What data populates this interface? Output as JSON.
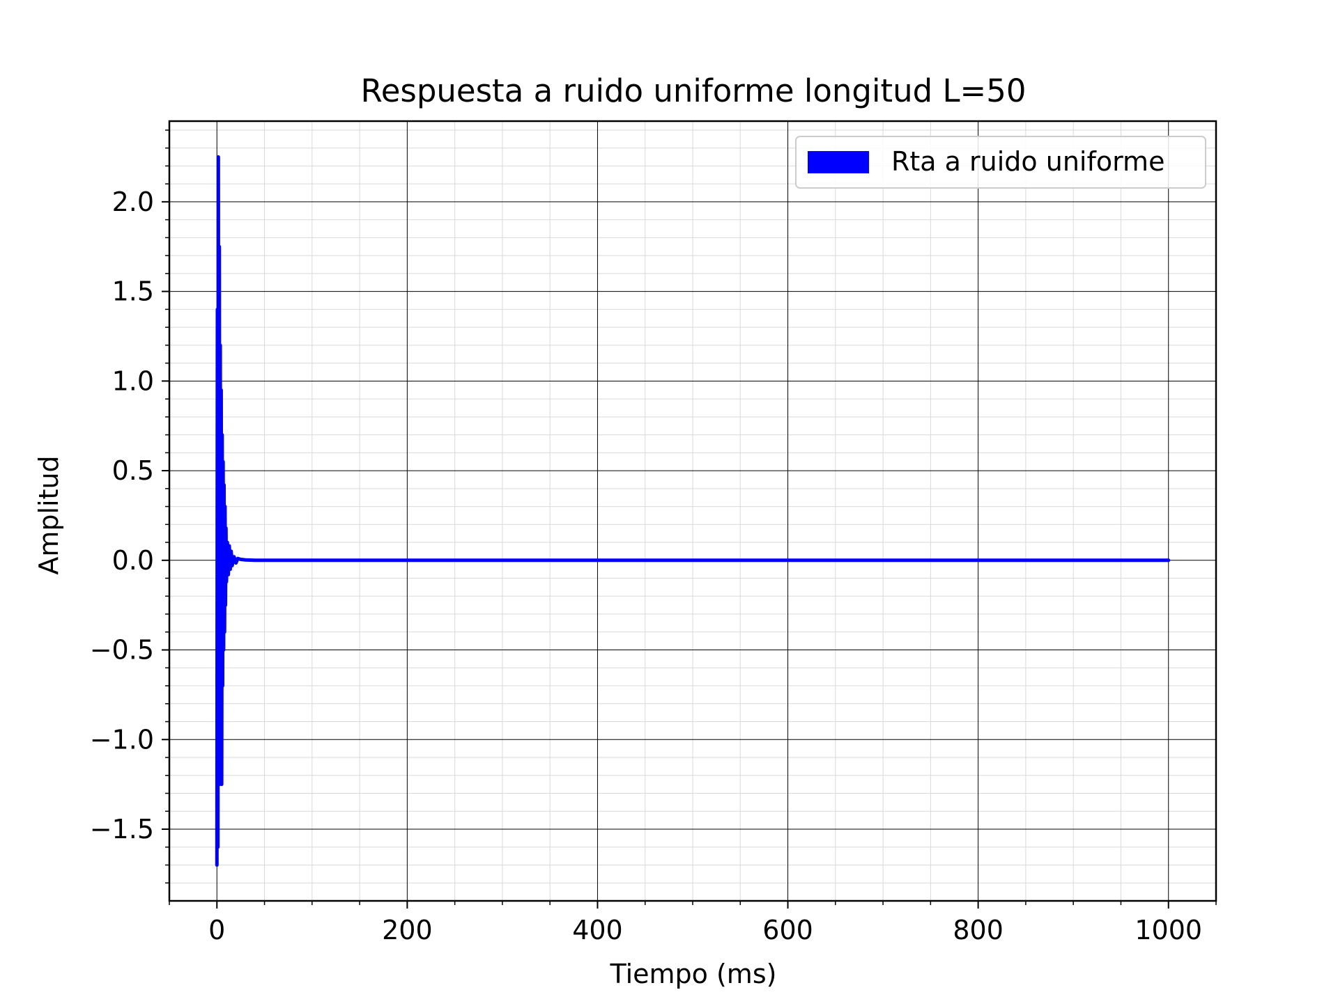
{
  "chart_data": {
    "type": "line",
    "title": "Respuesta a ruido uniforme longitud L=50",
    "xlabel": "Tiempo (ms)",
    "ylabel": "Amplitud",
    "xlim": [
      -50,
      1050
    ],
    "ylim": [
      -1.9,
      2.45
    ],
    "xticks": [
      0,
      200,
      400,
      600,
      800,
      1000
    ],
    "xtick_labels": [
      "0",
      "200",
      "400",
      "600",
      "800",
      "1000"
    ],
    "yticks": [
      -1.5,
      -1.0,
      -0.5,
      0.0,
      0.5,
      1.0,
      1.5,
      2.0
    ],
    "ytick_labels": [
      "−1.5",
      "−1.0",
      "−0.5",
      "0.0",
      "0.5",
      "1.0",
      "1.5",
      "2.0"
    ],
    "grid": "major and minor",
    "legend_position": "top-right",
    "series": [
      {
        "name": "Rta a ruido uniforme",
        "color": "#0000ff",
        "x": [
          0,
          0.5,
          1,
          1.5,
          2,
          2.5,
          3,
          3.5,
          4,
          4.5,
          5,
          5.5,
          6,
          6.5,
          7,
          7.5,
          8,
          8.5,
          9,
          9.5,
          10,
          11,
          12,
          13,
          14,
          15,
          16,
          18,
          20,
          22,
          25,
          30,
          40,
          60,
          100,
          1000
        ],
        "y": [
          -1.7,
          1.4,
          -1.6,
          2.25,
          -1.2,
          1.75,
          -1.25,
          1.2,
          -1.1,
          0.95,
          -1.25,
          0.7,
          -0.7,
          0.55,
          -0.5,
          0.42,
          -0.4,
          0.3,
          -0.25,
          0.18,
          -0.12,
          0.1,
          -0.08,
          0.08,
          -0.05,
          0.05,
          -0.03,
          0.02,
          -0.015,
          0.01,
          0.005,
          0.002,
          0.0,
          0.0,
          0.0,
          0.0
        ]
      }
    ]
  }
}
